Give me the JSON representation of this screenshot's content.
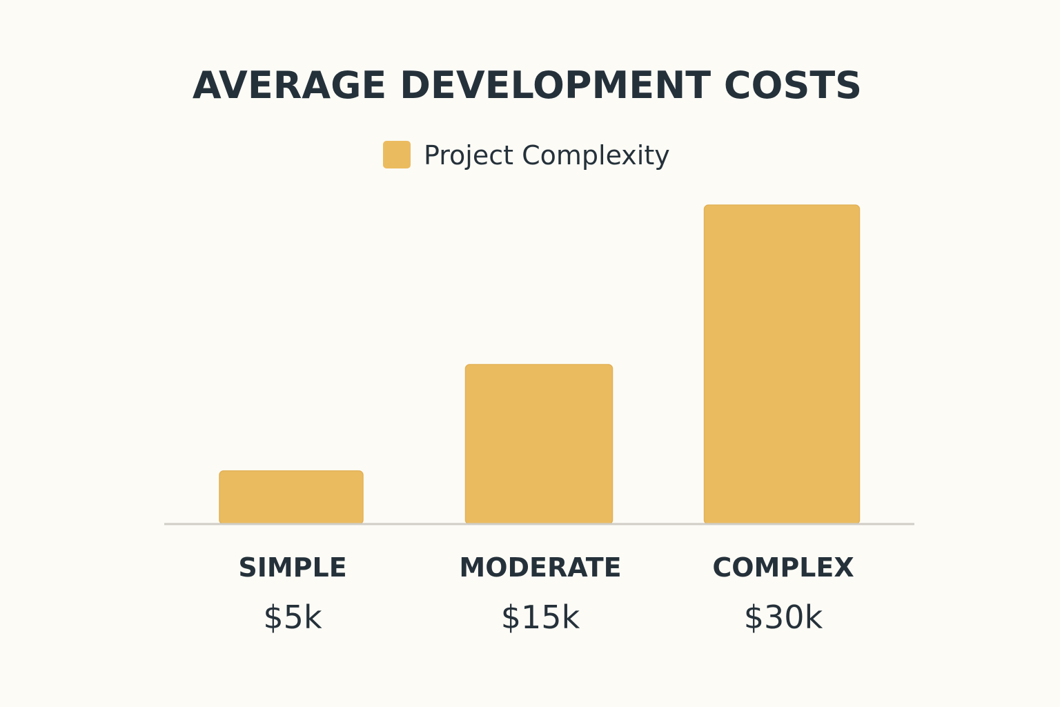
{
  "chart_data": {
    "type": "bar",
    "title": "AVERAGE DEVELOPMENT COSTS",
    "legend": [
      {
        "label": "Project Complexity",
        "color": "#ebbb5f"
      }
    ],
    "categories": [
      "SIMPLE",
      "MODERATE",
      "COMPLEX"
    ],
    "values": [
      5,
      15,
      30
    ],
    "value_labels": [
      "$5k",
      "$15k",
      "$30k"
    ],
    "unit": "$k",
    "xlabel": "",
    "ylabel": "",
    "ylim": [
      0,
      30
    ],
    "grid": false,
    "legend_position": "top-center",
    "colors": {
      "bar": "#ebbb5f",
      "bar_edge": "#e2b155",
      "baseline": "#cfcdc6",
      "text": "#25313a",
      "background": "#fcfbf6"
    }
  }
}
